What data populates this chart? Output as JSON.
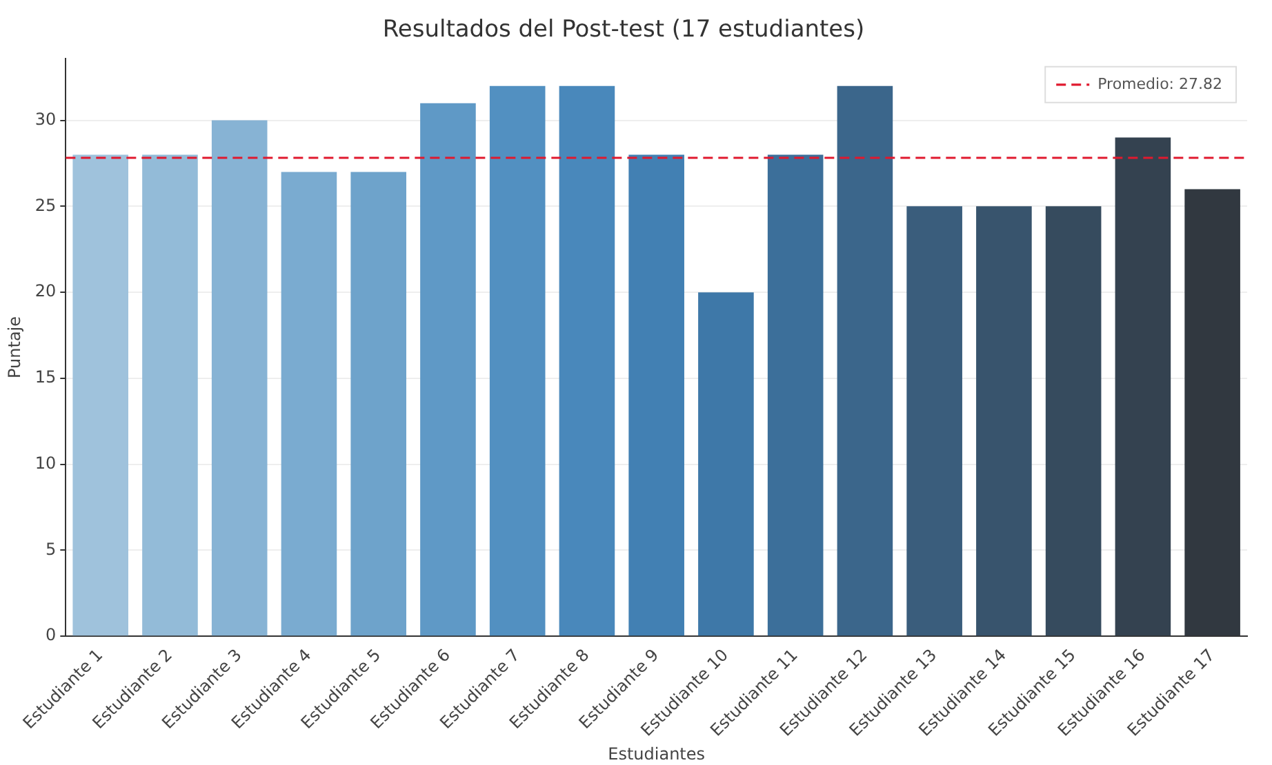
{
  "chart_data": {
    "type": "bar",
    "title": "Resultados del Post-test (17 estudiantes)",
    "xlabel": "Estudiantes",
    "ylabel": "Puntaje",
    "categories": [
      "Estudiante 1",
      "Estudiante 2",
      "Estudiante 3",
      "Estudiante 4",
      "Estudiante 5",
      "Estudiante 6",
      "Estudiante 7",
      "Estudiante 8",
      "Estudiante 9",
      "Estudiante 10",
      "Estudiante 11",
      "Estudiante 12",
      "Estudiante 13",
      "Estudiante 14",
      "Estudiante 15",
      "Estudiante 16",
      "Estudiante 17"
    ],
    "values": [
      28,
      28,
      30,
      27,
      27,
      31,
      32,
      32,
      28,
      20,
      28,
      32,
      25,
      25,
      25,
      29,
      26
    ],
    "colors": [
      "#9fc2dc",
      "#93bbd8",
      "#87b3d4",
      "#7aabd0",
      "#6ea3cb",
      "#5f99c6",
      "#5290c1",
      "#4988bb",
      "#4280b3",
      "#3e78a8",
      "#3c6f9a",
      "#3b668b",
      "#3a5d7c",
      "#38546d",
      "#364b5e",
      "#344250",
      "#313840"
    ],
    "ylim": [
      0,
      33.6
    ],
    "yticks": [
      0,
      5,
      10,
      15,
      20,
      25,
      30
    ],
    "grid": "y",
    "legend": "top right",
    "ref_lines": [
      {
        "axis": "y",
        "value": 27.82,
        "label": "Promedio: 27.82",
        "color": "#e0192e",
        "line_style": "dashed"
      }
    ]
  }
}
